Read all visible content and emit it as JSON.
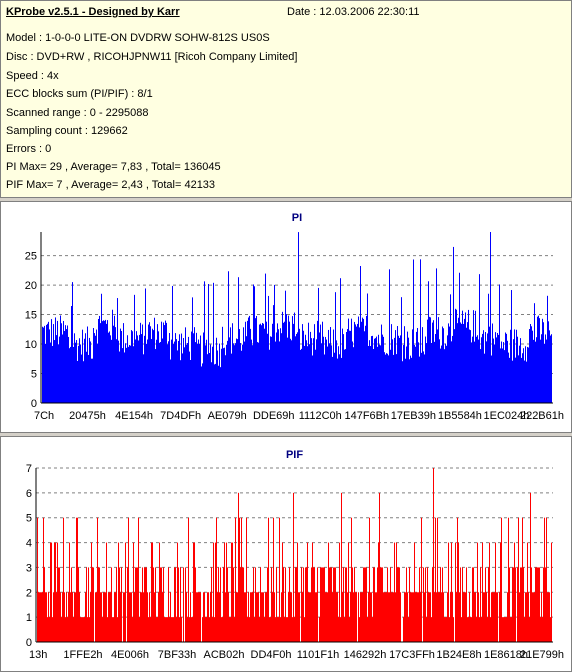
{
  "header": {
    "app_title": "KProbe v2.5.1 - Designed by Karr",
    "date": "Date : 12.03.2006 22:30:11"
  },
  "info_lines": [
    "Model : 1-0-0-0 LITE-ON DVDRW SOHW-812S  US0S",
    "Disc : DVD+RW , RICOHJPNW11 [Ricoh Company Limited]",
    "Speed : 4x",
    "ECC blocks sum (PI/PIF) : 8/1",
    "Scanned range : 0 - 2295088",
    "Sampling count : 129662",
    "Errors : 0",
    "PI Max= 29 , Average= 7,83 , Total= 136045",
    "PIF Max= 7 , Average= 2,43 , Total= 42133"
  ],
  "colors": {
    "pi": "#0000ff",
    "pif": "#ff0000",
    "title": "#000080"
  },
  "chart_data": [
    {
      "type": "bar",
      "title": "PI",
      "ylim": [
        0,
        29
      ],
      "yticks": [
        0,
        5,
        10,
        15,
        20,
        25
      ],
      "xtick_labels": [
        "7Ch",
        "20475h",
        "4E154h",
        "7D4DFh",
        "AE079h",
        "DDE69h",
        "1112C0h",
        "147F6Bh",
        "17EB39h",
        "1B5584h",
        "1EC024h",
        "222B61h"
      ],
      "grid": true,
      "baseline": [
        12,
        10,
        13,
        11,
        12,
        10,
        9,
        11,
        12,
        13,
        11,
        10,
        12,
        11,
        10,
        12,
        13,
        11,
        10,
        12
      ],
      "peaks": [
        17,
        21,
        19,
        22,
        18,
        21,
        20,
        24,
        22,
        26,
        21,
        25,
        23,
        22,
        24,
        20,
        23,
        22,
        25,
        21,
        27,
        23,
        22,
        24,
        21,
        23,
        25,
        22,
        26,
        21,
        24,
        23,
        26,
        22,
        25,
        29,
        24,
        23,
        25,
        24
      ],
      "max": 29
    },
    {
      "type": "bar",
      "title": "PIF",
      "ylim": [
        0,
        7
      ],
      "yticks": [
        0,
        1,
        2,
        3,
        4,
        5,
        6,
        7
      ],
      "xtick_labels": [
        "13h",
        "1FFE2h",
        "4E006h",
        "7BF33h",
        "ACB02h",
        "DD4F0h",
        "1101F1h",
        "146292h",
        "17C3FFh",
        "1B24E8h",
        "1E8618h",
        "21E799h"
      ],
      "grid": true,
      "level_fractions": {
        "0": 0.02,
        "1": 0.2,
        "2": 0.4,
        "3": 0.22,
        "4": 0.1,
        "5": 0.05,
        "6": 0.01
      },
      "max": 7
    }
  ]
}
